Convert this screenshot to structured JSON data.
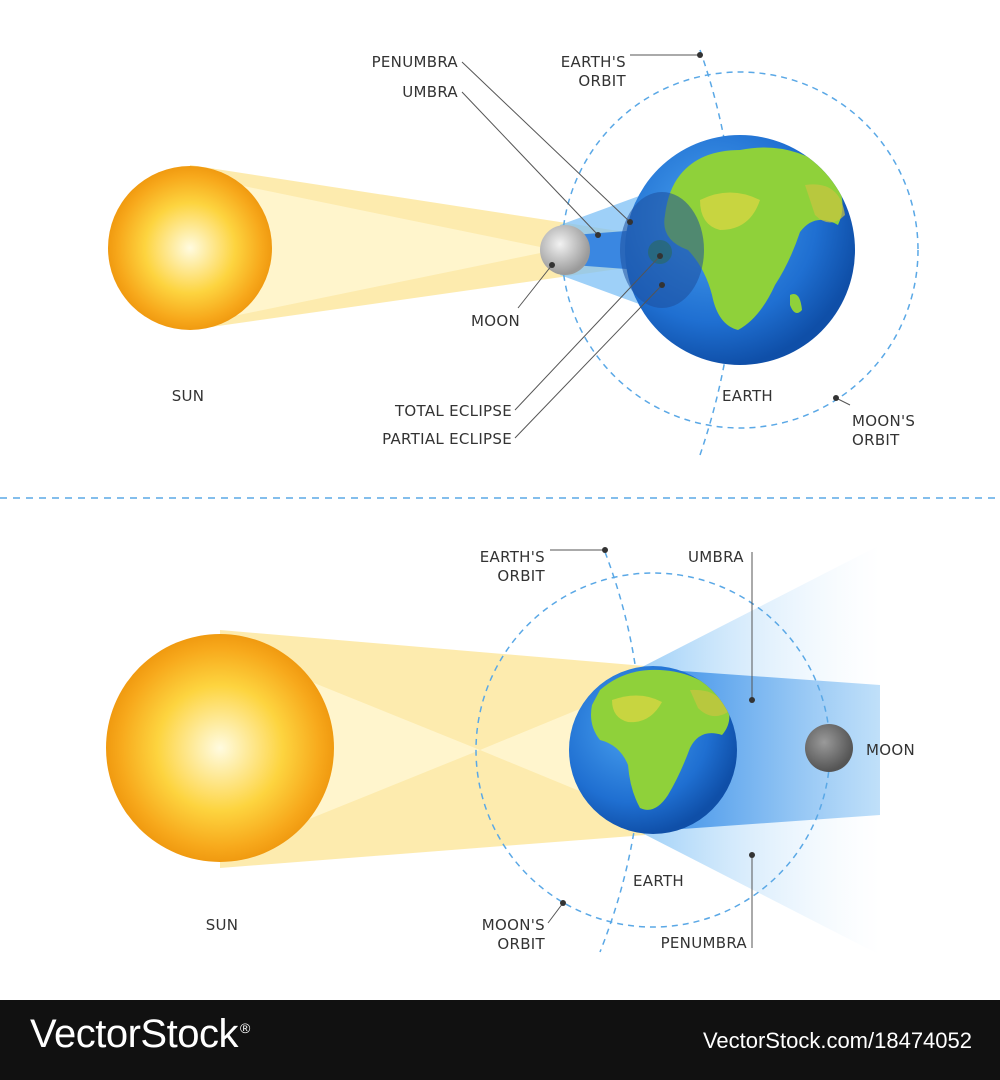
{
  "solar_eclipse": {
    "penumbra": "PENUMBRA",
    "umbra": "UMBRA",
    "earths_orbit_1": "EARTH'S",
    "earths_orbit_2": "ORBIT",
    "moon": "MOON",
    "sun": "SUN",
    "total_eclipse": "TOTAL ECLIPSE",
    "partial_eclipse": "PARTIAL ECLIPSE",
    "earth": "EARTH",
    "moons_orbit_1": "MOON'S",
    "moons_orbit_2": "ORBIT"
  },
  "lunar_eclipse": {
    "earths_orbit_1": "EARTH'S",
    "earths_orbit_2": "ORBIT",
    "umbra": "UMBRA",
    "moon": "MOON",
    "sun": "SUN",
    "earth": "EARTH",
    "moons_orbit_1": "MOON'S",
    "moons_orbit_2": "ORBIT",
    "penumbra": "PENUMBRA"
  },
  "footer": {
    "brand": "VectorStock",
    "registered": "®",
    "stock_id": "VectorStock.com/18474052"
  },
  "colors": {
    "sun": "#f7a81b",
    "light_beam": "#fde7a0",
    "shadow": "#3d8ee0",
    "ocean": "#1f6fd1",
    "land": "#8fd13a",
    "orbit": "#5aa8e6",
    "footer_bg": "#111111"
  }
}
